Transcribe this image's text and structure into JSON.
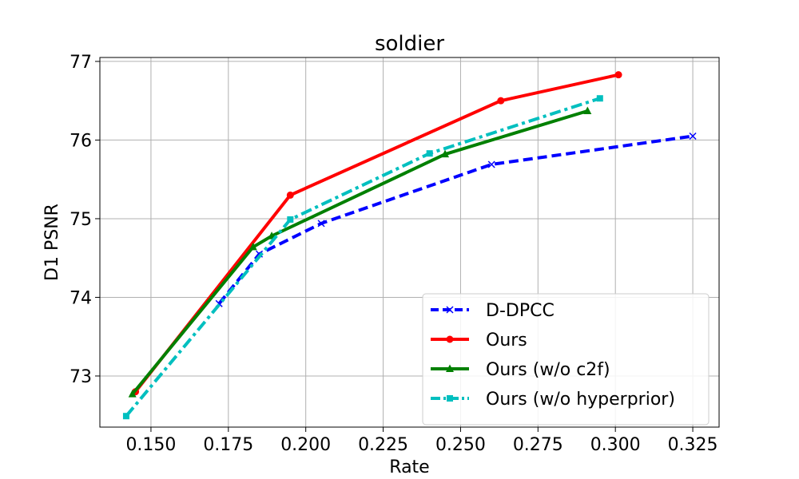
{
  "chart_data": {
    "type": "line",
    "title": "soldier",
    "xlabel": "Rate",
    "ylabel": "D1 PSNR",
    "xlim": [
      0.1335,
      0.3335
    ],
    "ylim": [
      72.35,
      77.05
    ],
    "xticks": [
      0.15,
      0.175,
      0.2,
      0.225,
      0.25,
      0.275,
      0.3,
      0.325
    ],
    "xtick_labels": [
      "0.150",
      "0.175",
      "0.200",
      "0.225",
      "0.250",
      "0.275",
      "0.300",
      "0.325"
    ],
    "yticks": [
      73,
      74,
      75,
      76,
      77
    ],
    "ytick_labels": [
      "73",
      "74",
      "75",
      "76",
      "77"
    ],
    "grid": true,
    "legend_position": "lower-right",
    "series": [
      {
        "name": "D-DPCC",
        "color": "#0000ff",
        "line_style": "dashed",
        "marker": "x",
        "x": [
          0.172,
          0.185,
          0.205,
          0.26,
          0.325
        ],
        "y": [
          73.92,
          74.55,
          74.94,
          75.69,
          76.05
        ]
      },
      {
        "name": "Ours",
        "color": "#ff0000",
        "line_style": "solid",
        "marker": "circle",
        "x": [
          0.145,
          0.195,
          0.263,
          0.301
        ],
        "y": [
          72.8,
          75.3,
          76.5,
          76.83
        ]
      },
      {
        "name": "Ours (w/o c2f)",
        "color": "#008000",
        "line_style": "solid",
        "marker": "triangle",
        "x": [
          0.144,
          0.183,
          0.189,
          0.245,
          0.291
        ],
        "y": [
          72.77,
          74.64,
          74.78,
          75.82,
          76.37
        ]
      },
      {
        "name": "Ours (w/o hyperprior)",
        "color": "#00bfbf",
        "line_style": "dashdot",
        "marker": "square",
        "x": [
          0.142,
          0.195,
          0.24,
          0.295
        ],
        "y": [
          72.49,
          74.99,
          75.83,
          76.53
        ]
      }
    ]
  }
}
